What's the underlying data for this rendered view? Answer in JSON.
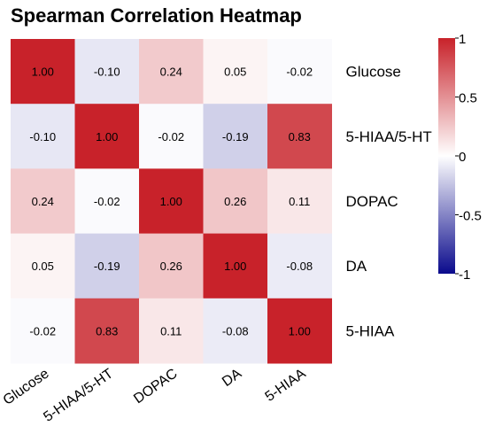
{
  "chart_data": {
    "type": "heatmap",
    "title": "Spearman Correlation Heatmap",
    "rows": [
      "Glucose",
      "5-HIAA/5-HT",
      "DOPAC",
      "DA",
      "5-HIAA"
    ],
    "columns": [
      "Glucose",
      "5-HIAA/5-HT",
      "DOPAC",
      "DA",
      "5-HIAA"
    ],
    "values": [
      [
        1.0,
        -0.1,
        0.24,
        0.05,
        -0.02
      ],
      [
        -0.1,
        1.0,
        -0.02,
        -0.19,
        0.83
      ],
      [
        0.24,
        -0.02,
        1.0,
        0.26,
        0.11
      ],
      [
        0.05,
        -0.19,
        0.26,
        1.0,
        -0.08
      ],
      [
        -0.02,
        0.83,
        0.11,
        -0.08,
        1.0
      ]
    ],
    "value_labels": [
      [
        "1.00",
        "-0.10",
        "0.24",
        "0.05",
        "-0.02"
      ],
      [
        "-0.10",
        "1.00",
        "-0.02",
        "-0.19",
        "0.83"
      ],
      [
        "0.24",
        "-0.02",
        "1.00",
        "0.26",
        "0.11"
      ],
      [
        "0.05",
        "-0.19",
        "0.26",
        "1.00",
        "-0.08"
      ],
      [
        "-0.02",
        "0.83",
        "0.11",
        "-0.08",
        "1.00"
      ]
    ],
    "colorbar": {
      "range": [
        -1,
        1
      ],
      "tick_labels": [
        "1",
        "0.5",
        "0",
        "-0.5",
        "-1"
      ],
      "tick_values": [
        1,
        0.5,
        0,
        -0.5,
        -1
      ],
      "colors": {
        "low": "#0a0a8c",
        "mid": "#ffffff",
        "high": "#c8222a"
      }
    },
    "legend_position": "right",
    "grid": false
  }
}
